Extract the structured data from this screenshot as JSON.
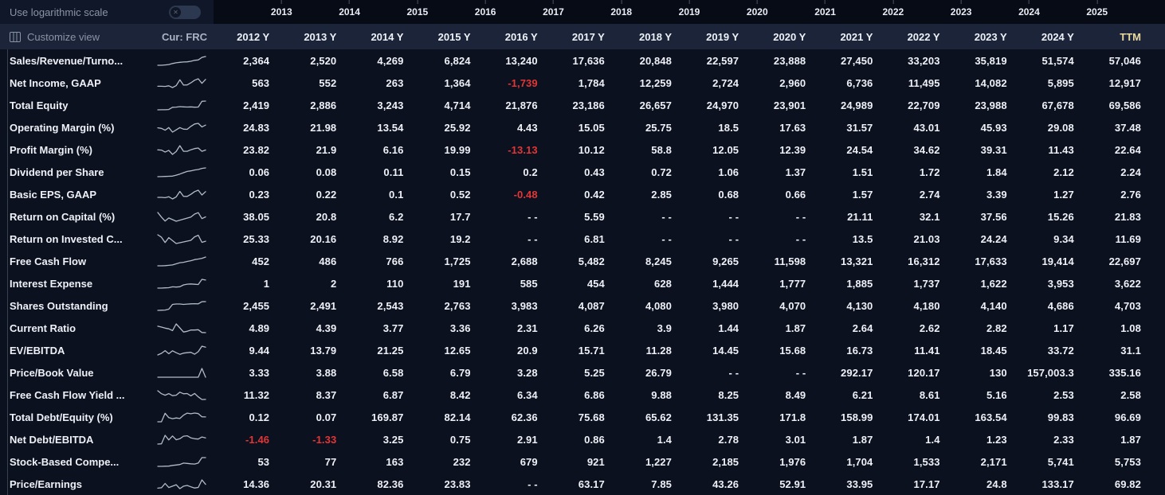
{
  "controls": {
    "log_scale_label": "Use logarithmic scale",
    "customize_label": "Customize view",
    "currency_label": "Cur: FRC",
    "toggle_state": "off"
  },
  "icons": {
    "customize": "columns-icon",
    "toggle_knob": "x-circle-icon"
  },
  "colors": {
    "background": "#0c111f",
    "topbar_left_background": "#101728",
    "timeline_background": "#070b16",
    "header_background": "#1b2438",
    "text_primary": "#eef1f7",
    "text_dim": "#8a94a6",
    "negative": "#e23636",
    "ttm_header": "#ead9a0",
    "sparkline": "#b2bbca"
  },
  "timeline_years": [
    "2013",
    "2014",
    "2015",
    "2016",
    "2017",
    "2018",
    "2019",
    "2020",
    "2021",
    "2022",
    "2023",
    "2024",
    "2025"
  ],
  "columns": [
    "2012 Y",
    "2013 Y",
    "2014 Y",
    "2015 Y",
    "2016 Y",
    "2017 Y",
    "2018 Y",
    "2019 Y",
    "2020 Y",
    "2021 Y",
    "2022 Y",
    "2023 Y",
    "2024 Y",
    "TTM"
  ],
  "rows": [
    {
      "metric": "Sales/Revenue/Turno...",
      "values": [
        "2,364",
        "2,520",
        "4,269",
        "6,824",
        "13,240",
        "17,636",
        "20,848",
        "22,597",
        "23,888",
        "27,450",
        "33,203",
        "35,819",
        "51,574",
        "57,046"
      ]
    },
    {
      "metric": "Net Income, GAAP",
      "values": [
        "563",
        "552",
        "263",
        "1,364",
        "-1,739",
        "1,784",
        "12,259",
        "2,724",
        "2,960",
        "6,736",
        "11,495",
        "14,082",
        "5,895",
        "12,917"
      ]
    },
    {
      "metric": "Total Equity",
      "values": [
        "2,419",
        "2,886",
        "3,243",
        "4,714",
        "21,876",
        "23,186",
        "26,657",
        "24,970",
        "23,901",
        "24,989",
        "22,709",
        "23,988",
        "67,678",
        "69,586"
      ]
    },
    {
      "metric": "Operating Margin (%)",
      "values": [
        "24.83",
        "21.98",
        "13.54",
        "25.92",
        "4.43",
        "15.05",
        "25.75",
        "18.5",
        "17.63",
        "31.57",
        "43.01",
        "45.93",
        "29.08",
        "37.48"
      ]
    },
    {
      "metric": "Profit Margin (%)",
      "values": [
        "23.82",
        "21.9",
        "6.16",
        "19.99",
        "-13.13",
        "10.12",
        "58.8",
        "12.05",
        "12.39",
        "24.54",
        "34.62",
        "39.31",
        "11.43",
        "22.64"
      ]
    },
    {
      "metric": "Dividend per Share",
      "values": [
        "0.06",
        "0.08",
        "0.11",
        "0.15",
        "0.2",
        "0.43",
        "0.72",
        "1.06",
        "1.37",
        "1.51",
        "1.72",
        "1.84",
        "2.12",
        "2.24"
      ]
    },
    {
      "metric": "Basic EPS, GAAP",
      "values": [
        "0.23",
        "0.22",
        "0.1",
        "0.52",
        "-0.48",
        "0.42",
        "2.85",
        "0.68",
        "0.66",
        "1.57",
        "2.74",
        "3.39",
        "1.27",
        "2.76"
      ]
    },
    {
      "metric": "Return on Capital (%)",
      "values": [
        "38.05",
        "20.8",
        "6.2",
        "17.7",
        "- -",
        "5.59",
        "- -",
        "- -",
        "- -",
        "21.11",
        "32.1",
        "37.56",
        "15.26",
        "21.83"
      ]
    },
    {
      "metric": "Return on Invested C...",
      "values": [
        "25.33",
        "20.16",
        "8.92",
        "19.2",
        "- -",
        "6.81",
        "- -",
        "- -",
        "- -",
        "13.5",
        "21.03",
        "24.24",
        "9.34",
        "11.69"
      ]
    },
    {
      "metric": "Free Cash Flow",
      "values": [
        "452",
        "486",
        "766",
        "1,725",
        "2,688",
        "5,482",
        "8,245",
        "9,265",
        "11,598",
        "13,321",
        "16,312",
        "17,633",
        "19,414",
        "22,697"
      ]
    },
    {
      "metric": "Interest Expense",
      "values": [
        "1",
        "2",
        "110",
        "191",
        "585",
        "454",
        "628",
        "1,444",
        "1,777",
        "1,885",
        "1,737",
        "1,622",
        "3,953",
        "3,622"
      ]
    },
    {
      "metric": "Shares Outstanding",
      "values": [
        "2,455",
        "2,491",
        "2,543",
        "2,763",
        "3,983",
        "4,087",
        "4,080",
        "3,980",
        "4,070",
        "4,130",
        "4,180",
        "4,140",
        "4,686",
        "4,703"
      ]
    },
    {
      "metric": "Current Ratio",
      "values": [
        "4.89",
        "4.39",
        "3.77",
        "3.36",
        "2.31",
        "6.26",
        "3.9",
        "1.44",
        "1.87",
        "2.64",
        "2.62",
        "2.82",
        "1.17",
        "1.08"
      ]
    },
    {
      "metric": "EV/EBITDA",
      "values": [
        "9.44",
        "13.79",
        "21.25",
        "12.65",
        "20.9",
        "15.71",
        "11.28",
        "14.45",
        "15.68",
        "16.73",
        "11.41",
        "18.45",
        "33.72",
        "31.1"
      ]
    },
    {
      "metric": "Price/Book Value",
      "values": [
        "3.33",
        "3.88",
        "6.58",
        "6.79",
        "3.28",
        "5.25",
        "26.79",
        "- -",
        "- -",
        "292.17",
        "120.17",
        "130",
        "157,003.3",
        "335.16"
      ]
    },
    {
      "metric": "Free Cash Flow Yield ...",
      "values": [
        "11.32",
        "8.37",
        "6.87",
        "8.42",
        "6.34",
        "6.86",
        "9.88",
        "8.25",
        "8.49",
        "6.21",
        "8.61",
        "5.16",
        "2.53",
        "2.58"
      ]
    },
    {
      "metric": "Total Debt/Equity (%)",
      "values": [
        "0.12",
        "0.07",
        "169.87",
        "82.14",
        "62.36",
        "75.68",
        "65.62",
        "131.35",
        "171.8",
        "158.99",
        "174.01",
        "163.54",
        "99.83",
        "96.69"
      ]
    },
    {
      "metric": "Net Debt/EBITDA",
      "values": [
        "-1.46",
        "-1.33",
        "3.25",
        "0.75",
        "2.91",
        "0.86",
        "1.4",
        "2.78",
        "3.01",
        "1.87",
        "1.4",
        "1.23",
        "2.33",
        "1.87"
      ]
    },
    {
      "metric": "Stock-Based Compe...",
      "values": [
        "53",
        "77",
        "163",
        "232",
        "679",
        "921",
        "1,227",
        "2,185",
        "1,976",
        "1,704",
        "1,533",
        "2,171",
        "5,741",
        "5,753"
      ]
    },
    {
      "metric": "Price/Earnings",
      "values": [
        "14.36",
        "20.31",
        "82.36",
        "23.83",
        "- -",
        "63.17",
        "7.85",
        "43.26",
        "52.91",
        "33.95",
        "17.17",
        "24.8",
        "133.17",
        "69.82"
      ]
    }
  ]
}
